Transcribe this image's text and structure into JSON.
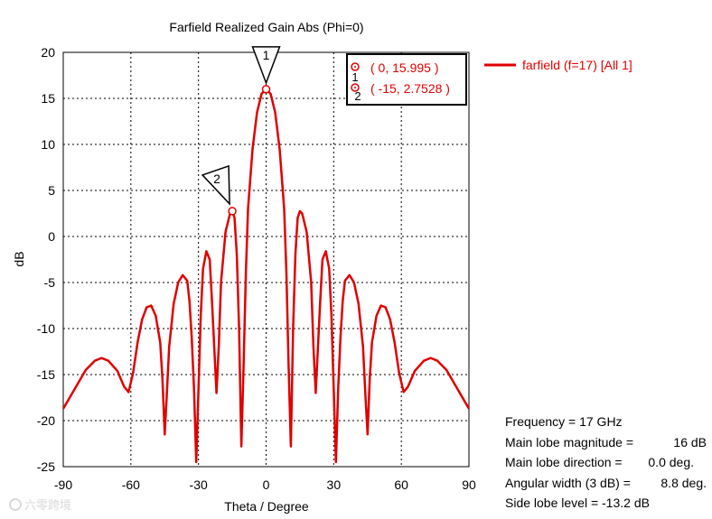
{
  "chart_data": {
    "type": "line",
    "title": "Farfield Realized Gain Abs (Phi=0)",
    "xlabel": "Theta / Degree",
    "ylabel": "dB",
    "xlim": [
      -90,
      90
    ],
    "ylim": [
      -25,
      20
    ],
    "xticks": [
      "-90",
      "-60",
      "-30",
      "0",
      "30",
      "60",
      "90"
    ],
    "yticks": [
      "20",
      "15",
      "10",
      "5",
      "0",
      "-5",
      "-10",
      "-15",
      "-20",
      "-25"
    ],
    "grid": true,
    "legend": {
      "position": "right",
      "entries": [
        "farfield (f=17) [All 1]"
      ]
    },
    "color": "#e00000",
    "series": [
      {
        "name": "farfield (f=17) [All 1]",
        "points": [
          [
            -90,
            -18.7
          ],
          [
            -85,
            -16.6
          ],
          [
            -80,
            -14.5
          ],
          [
            -76,
            -13.5
          ],
          [
            -73,
            -13.2
          ],
          [
            -70,
            -13.5
          ],
          [
            -66,
            -14.6
          ],
          [
            -63,
            -16.3
          ],
          [
            -61,
            -16.9
          ],
          [
            -59,
            -14.8
          ],
          [
            -57,
            -11.5
          ],
          [
            -55,
            -9.0
          ],
          [
            -53,
            -7.7
          ],
          [
            -51,
            -7.5
          ],
          [
            -49,
            -8.6
          ],
          [
            -47,
            -11.5
          ],
          [
            -46,
            -15.5
          ],
          [
            -45,
            -21.5
          ],
          [
            -44,
            -17.0
          ],
          [
            -43,
            -12.0
          ],
          [
            -41,
            -7.3
          ],
          [
            -39,
            -5.0
          ],
          [
            -37,
            -4.2
          ],
          [
            -35,
            -4.8
          ],
          [
            -34,
            -7.0
          ],
          [
            -33,
            -11.0
          ],
          [
            -32,
            -16.5
          ],
          [
            -31,
            -24.5
          ],
          [
            -30,
            -16.5
          ],
          [
            -29,
            -8.5
          ],
          [
            -28,
            -3.5
          ],
          [
            -26.5,
            -1.6
          ],
          [
            -25,
            -2.5
          ],
          [
            -24,
            -7.0
          ],
          [
            -23,
            -12.0
          ],
          [
            -22,
            -17.0
          ],
          [
            -21,
            -12.0
          ],
          [
            -20,
            -5.0
          ],
          [
            -18,
            0.5
          ],
          [
            -16,
            2.5
          ],
          [
            -15,
            2.75
          ],
          [
            -14,
            2.0
          ],
          [
            -13,
            -2.0
          ],
          [
            -12,
            -10.0
          ],
          [
            -11,
            -22.8
          ],
          [
            -10,
            -14.0
          ],
          [
            -9,
            -4.0
          ],
          [
            -8,
            3.0
          ],
          [
            -6,
            9.5
          ],
          [
            -4,
            13.5
          ],
          [
            -2,
            15.5
          ],
          [
            0,
            16.0
          ],
          [
            2,
            15.5
          ],
          [
            4,
            13.5
          ],
          [
            6,
            9.5
          ],
          [
            8,
            3.0
          ],
          [
            9,
            -4.0
          ],
          [
            10,
            -14.0
          ],
          [
            11,
            -22.8
          ],
          [
            12,
            -10.0
          ],
          [
            13,
            -2.0
          ],
          [
            14,
            2.0
          ],
          [
            15,
            2.75
          ],
          [
            16,
            2.5
          ],
          [
            18,
            0.5
          ],
          [
            20,
            -5.0
          ],
          [
            21,
            -12.0
          ],
          [
            22,
            -17.0
          ],
          [
            23,
            -12.0
          ],
          [
            24,
            -7.0
          ],
          [
            25,
            -2.5
          ],
          [
            26.5,
            -1.6
          ],
          [
            28,
            -3.5
          ],
          [
            29,
            -8.5
          ],
          [
            30,
            -16.5
          ],
          [
            31,
            -24.5
          ],
          [
            32,
            -16.5
          ],
          [
            33,
            -11.0
          ],
          [
            34,
            -7.0
          ],
          [
            35,
            -4.8
          ],
          [
            37,
            -4.2
          ],
          [
            39,
            -5.0
          ],
          [
            41,
            -7.3
          ],
          [
            43,
            -12.0
          ],
          [
            44,
            -17.0
          ],
          [
            45,
            -21.5
          ],
          [
            46,
            -15.5
          ],
          [
            47,
            -11.5
          ],
          [
            49,
            -8.6
          ],
          [
            51,
            -7.5
          ],
          [
            53,
            -7.7
          ],
          [
            55,
            -9.0
          ],
          [
            57,
            -11.5
          ],
          [
            59,
            -14.8
          ],
          [
            61,
            -16.9
          ],
          [
            63,
            -16.3
          ],
          [
            66,
            -14.6
          ],
          [
            70,
            -13.5
          ],
          [
            73,
            -13.2
          ],
          [
            76,
            -13.5
          ],
          [
            80,
            -14.5
          ],
          [
            85,
            -16.6
          ],
          [
            90,
            -18.7
          ]
        ]
      }
    ],
    "markers": [
      {
        "id": "1",
        "x": 0,
        "y": 15.995,
        "label": "( 0, 15.995 )"
      },
      {
        "id": "2",
        "x": -15,
        "y": 2.7528,
        "label": "( -15, 2.7528 )"
      }
    ],
    "info": [
      {
        "label": "Frequency = 17 GHz",
        "value": ""
      },
      {
        "label": "Main lobe magnitude =",
        "value": "16 dB"
      },
      {
        "label": "Main lobe direction =",
        "value": "0.0 deg."
      },
      {
        "label": "Angular width (3 dB) =",
        "value": "8.8 deg."
      },
      {
        "label": "Side lobe level = -13.2 dB",
        "value": ""
      }
    ]
  },
  "watermark": "六零跨境"
}
